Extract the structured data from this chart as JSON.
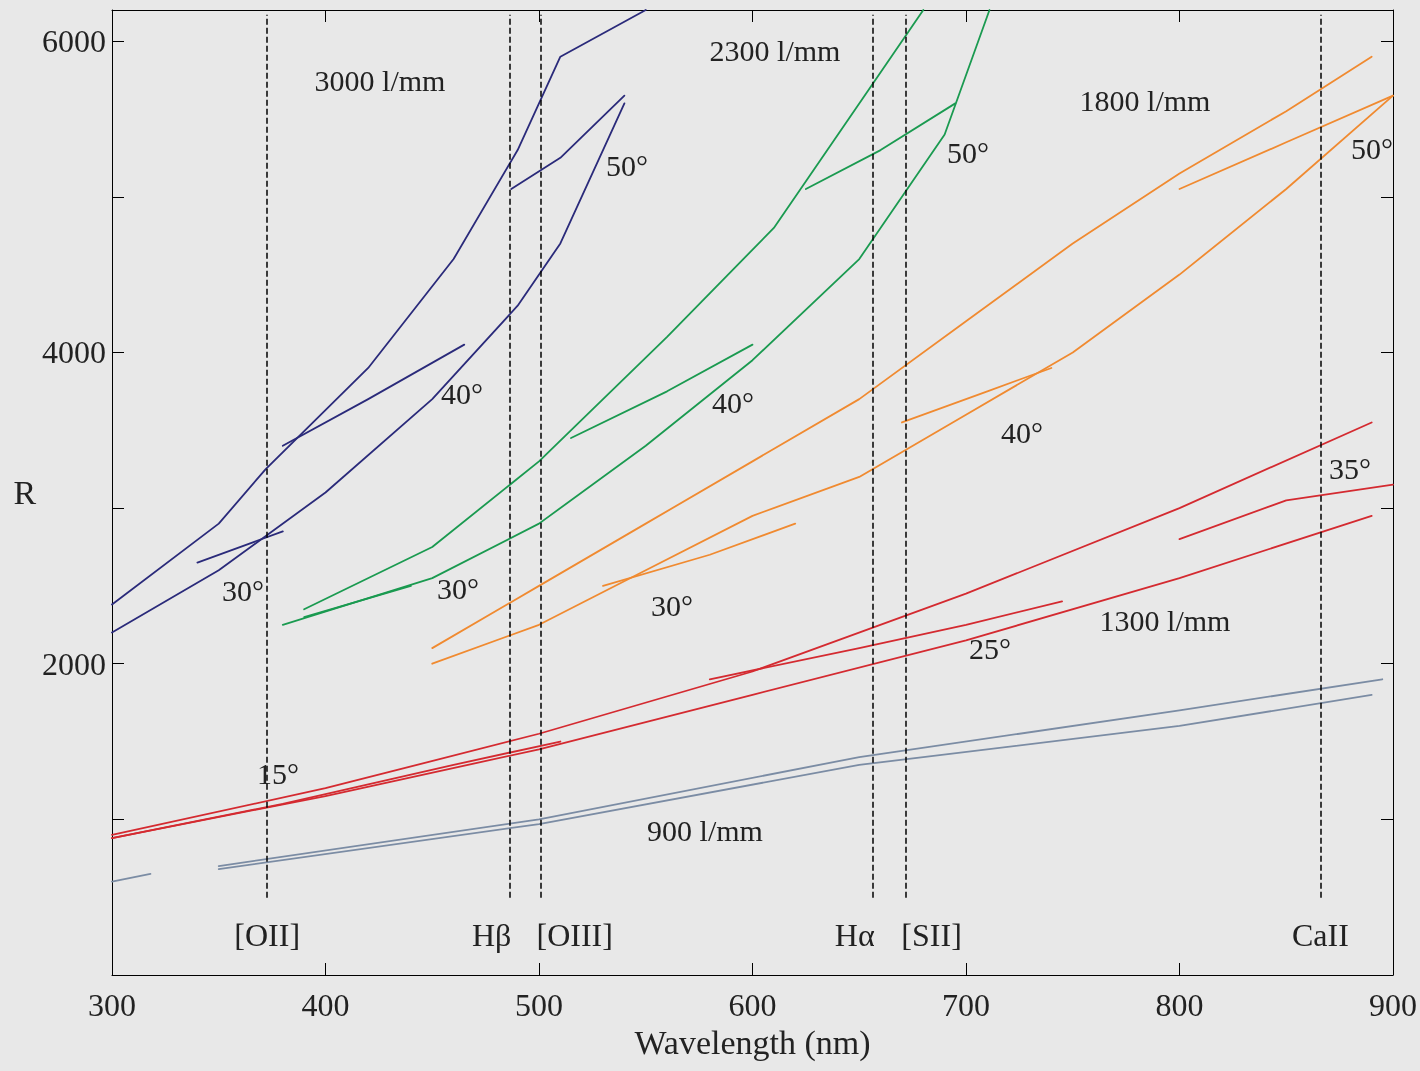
{
  "chart_data": {
    "type": "line",
    "xlabel": "Wavelength (nm)",
    "ylabel": "R",
    "xlim": [
      300,
      900
    ],
    "xticks": [
      300,
      400,
      500,
      600,
      700,
      800,
      900
    ],
    "ylim": [
      0,
      6200
    ],
    "yticks": [
      {
        "value": 1000,
        "label": null
      },
      2000,
      {
        "value": 3000,
        "label": null
      },
      4000,
      {
        "value": 5000,
        "label": null
      },
      6000
    ],
    "grid": false,
    "marker": "none",
    "line_style": "solid",
    "series": [
      {
        "color": "#2a2a7a",
        "x": [
          300,
          350,
          372,
          420,
          460,
          490,
          510,
          550
        ],
        "values": [
          2380,
          2900,
          3250,
          3900,
          4600,
          5300,
          5900,
          6200
        ]
      },
      {
        "color": "#2a2a7a",
        "x": [
          300,
          350,
          400,
          450,
          490,
          510,
          540
        ],
        "values": [
          2200,
          2600,
          3100,
          3700,
          4300,
          4700,
          5600
        ]
      },
      {
        "color": "#2a2a7a",
        "x": [
          380,
          420,
          465
        ],
        "values": [
          3400,
          3700,
          4050
        ]
      },
      {
        "color": "#2a2a7a",
        "x": [
          487,
          510,
          540
        ],
        "values": [
          5050,
          5250,
          5650
        ]
      },
      {
        "color": "#2a2a7a",
        "x": [
          340,
          380
        ],
        "values": [
          2650,
          2850
        ]
      },
      {
        "color": "#1a9a50",
        "x": [
          390,
          450,
          500,
          560,
          610,
          650,
          680
        ],
        "values": [
          2350,
          2750,
          3300,
          4100,
          4800,
          5600,
          6200
        ]
      },
      {
        "color": "#1a9a50",
        "x": [
          380,
          450,
          500,
          550,
          600,
          650,
          690,
          711
        ],
        "values": [
          2250,
          2550,
          2900,
          3400,
          3950,
          4600,
          5400,
          6200
        ]
      },
      {
        "color": "#1a9a50",
        "x": [
          515,
          560,
          600
        ],
        "values": [
          3450,
          3750,
          4050
        ]
      },
      {
        "color": "#1a9a50",
        "x": [
          625,
          660,
          695
        ],
        "values": [
          5050,
          5300,
          5600
        ]
      },
      {
        "color": "#1a9a50",
        "x": [
          390,
          440
        ],
        "values": [
          2300,
          2500
        ]
      },
      {
        "color": "#f08a30",
        "x": [
          450,
          500,
          550,
          600,
          650,
          700,
          750,
          800,
          850,
          890
        ],
        "values": [
          2100,
          2500,
          2900,
          3300,
          3700,
          4200,
          4700,
          5150,
          5550,
          5900
        ]
      },
      {
        "color": "#f08a30",
        "x": [
          450,
          500,
          550,
          600,
          650,
          700,
          750,
          800,
          850,
          900
        ],
        "values": [
          2000,
          2250,
          2600,
          2950,
          3200,
          3600,
          4000,
          4500,
          5050,
          5650
        ]
      },
      {
        "color": "#f08a30",
        "x": [
          670,
          710,
          740
        ],
        "values": [
          3550,
          3750,
          3900
        ]
      },
      {
        "color": "#f08a30",
        "x": [
          800,
          850,
          900
        ],
        "values": [
          5050,
          5350,
          5650
        ]
      },
      {
        "color": "#f08a30",
        "x": [
          530,
          580,
          620
        ],
        "values": [
          2500,
          2700,
          2900
        ]
      },
      {
        "color": "#d42a30",
        "x": [
          300,
          400,
          500,
          600,
          700,
          800,
          890
        ],
        "values": [
          900,
          1200,
          1550,
          1950,
          2450,
          3000,
          3550
        ]
      },
      {
        "color": "#d42a30",
        "x": [
          300,
          400,
          500,
          600,
          700,
          800,
          890
        ],
        "values": [
          880,
          1150,
          1450,
          1800,
          2150,
          2550,
          2950
        ]
      },
      {
        "color": "#d42a30",
        "x": [
          300,
          380,
          460,
          510
        ],
        "values": [
          880,
          1100,
          1350,
          1500
        ]
      },
      {
        "color": "#d42a30",
        "x": [
          580,
          650,
          700,
          745
        ],
        "values": [
          1900,
          2100,
          2250,
          2400
        ]
      },
      {
        "color": "#d42a30",
        "x": [
          800,
          850,
          900
        ],
        "values": [
          2800,
          3050,
          3150
        ]
      },
      {
        "color": "#7b8ca4",
        "x": [
          350,
          500,
          650,
          800,
          895
        ],
        "values": [
          700,
          1000,
          1400,
          1700,
          1900
        ]
      },
      {
        "color": "#7b8ca4",
        "x": [
          350,
          500,
          650,
          800,
          890
        ],
        "values": [
          680,
          970,
          1350,
          1600,
          1800
        ]
      },
      {
        "color": "#7b8ca4",
        "x": [
          300,
          318
        ],
        "values": [
          600,
          650
        ]
      }
    ],
    "ref_lines": [
      {
        "axis": "x",
        "value": 372.7,
        "label": "[OII]"
      },
      {
        "axis": "x",
        "value": 486.1,
        "label": "Hβ"
      },
      {
        "axis": "x",
        "value": 500.7,
        "label": "[OIII]"
      },
      {
        "axis": "x",
        "value": 656.3,
        "label": "Hα"
      },
      {
        "axis": "x",
        "value": 671.6,
        "label": "[SII]"
      },
      {
        "axis": "x",
        "value": 866,
        "label": "CaII"
      }
    ],
    "annotations": [
      "3000 l/mm",
      "2300 l/mm",
      "1800 l/mm",
      "1300 l/mm",
      "900 l/mm",
      "50°",
      "40°",
      "30°",
      "50°",
      "40°",
      "30°",
      "50°",
      "40°",
      "30°",
      "35°",
      "25°",
      "15°"
    ]
  }
}
